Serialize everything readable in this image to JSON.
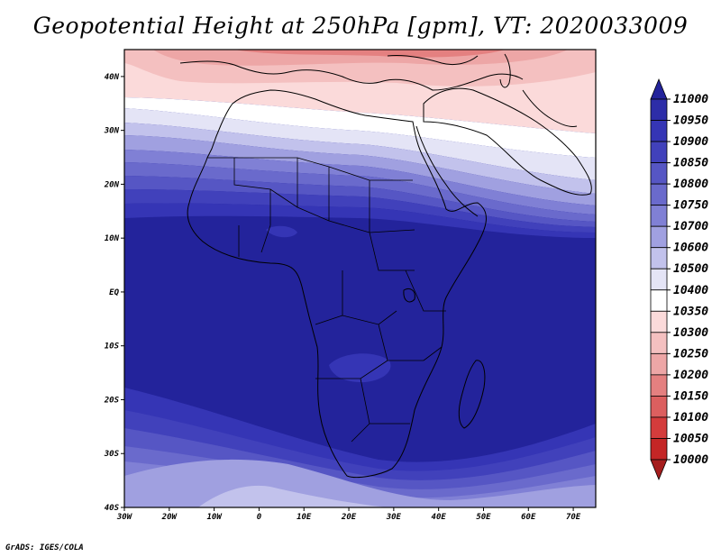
{
  "title": "Geopotential Height at 250hPa [gpm], VT: 2020033009",
  "footer": "GrADS: IGES/COLA",
  "map": {
    "lon_labels": [
      "30W",
      "20W",
      "10W",
      "0",
      "10E",
      "20E",
      "30E",
      "40E",
      "50E",
      "60E",
      "70E"
    ],
    "lat_labels": [
      "40N",
      "30N",
      "20N",
      "10N",
      "EQ",
      "10S",
      "20S",
      "30S",
      "40S"
    ],
    "lon_range": [
      -30,
      75
    ],
    "lat_range": [
      -40,
      45
    ]
  },
  "colorbar": {
    "levels": [
      "11000",
      "10950",
      "10900",
      "10850",
      "10800",
      "10750",
      "10700",
      "10600",
      "10500",
      "10400",
      "10350",
      "10300",
      "10250",
      "10200",
      "10150",
      "10100",
      "10050",
      "10000"
    ],
    "colors": [
      "#23239b",
      "#2d2da8",
      "#3535b5",
      "#4141bb",
      "#5656c4",
      "#6a6acc",
      "#8080d5",
      "#a0a0e0",
      "#c2c2ec",
      "#e4e4f6",
      "#ffffff",
      "#fbdada",
      "#f4c0c0",
      "#eda6a6",
      "#e48080",
      "#dc5f5f",
      "#d43c3c",
      "#c42626",
      "#a51d1d"
    ]
  },
  "colors": {
    "land_outline": "#000000",
    "frame": "#000000"
  }
}
